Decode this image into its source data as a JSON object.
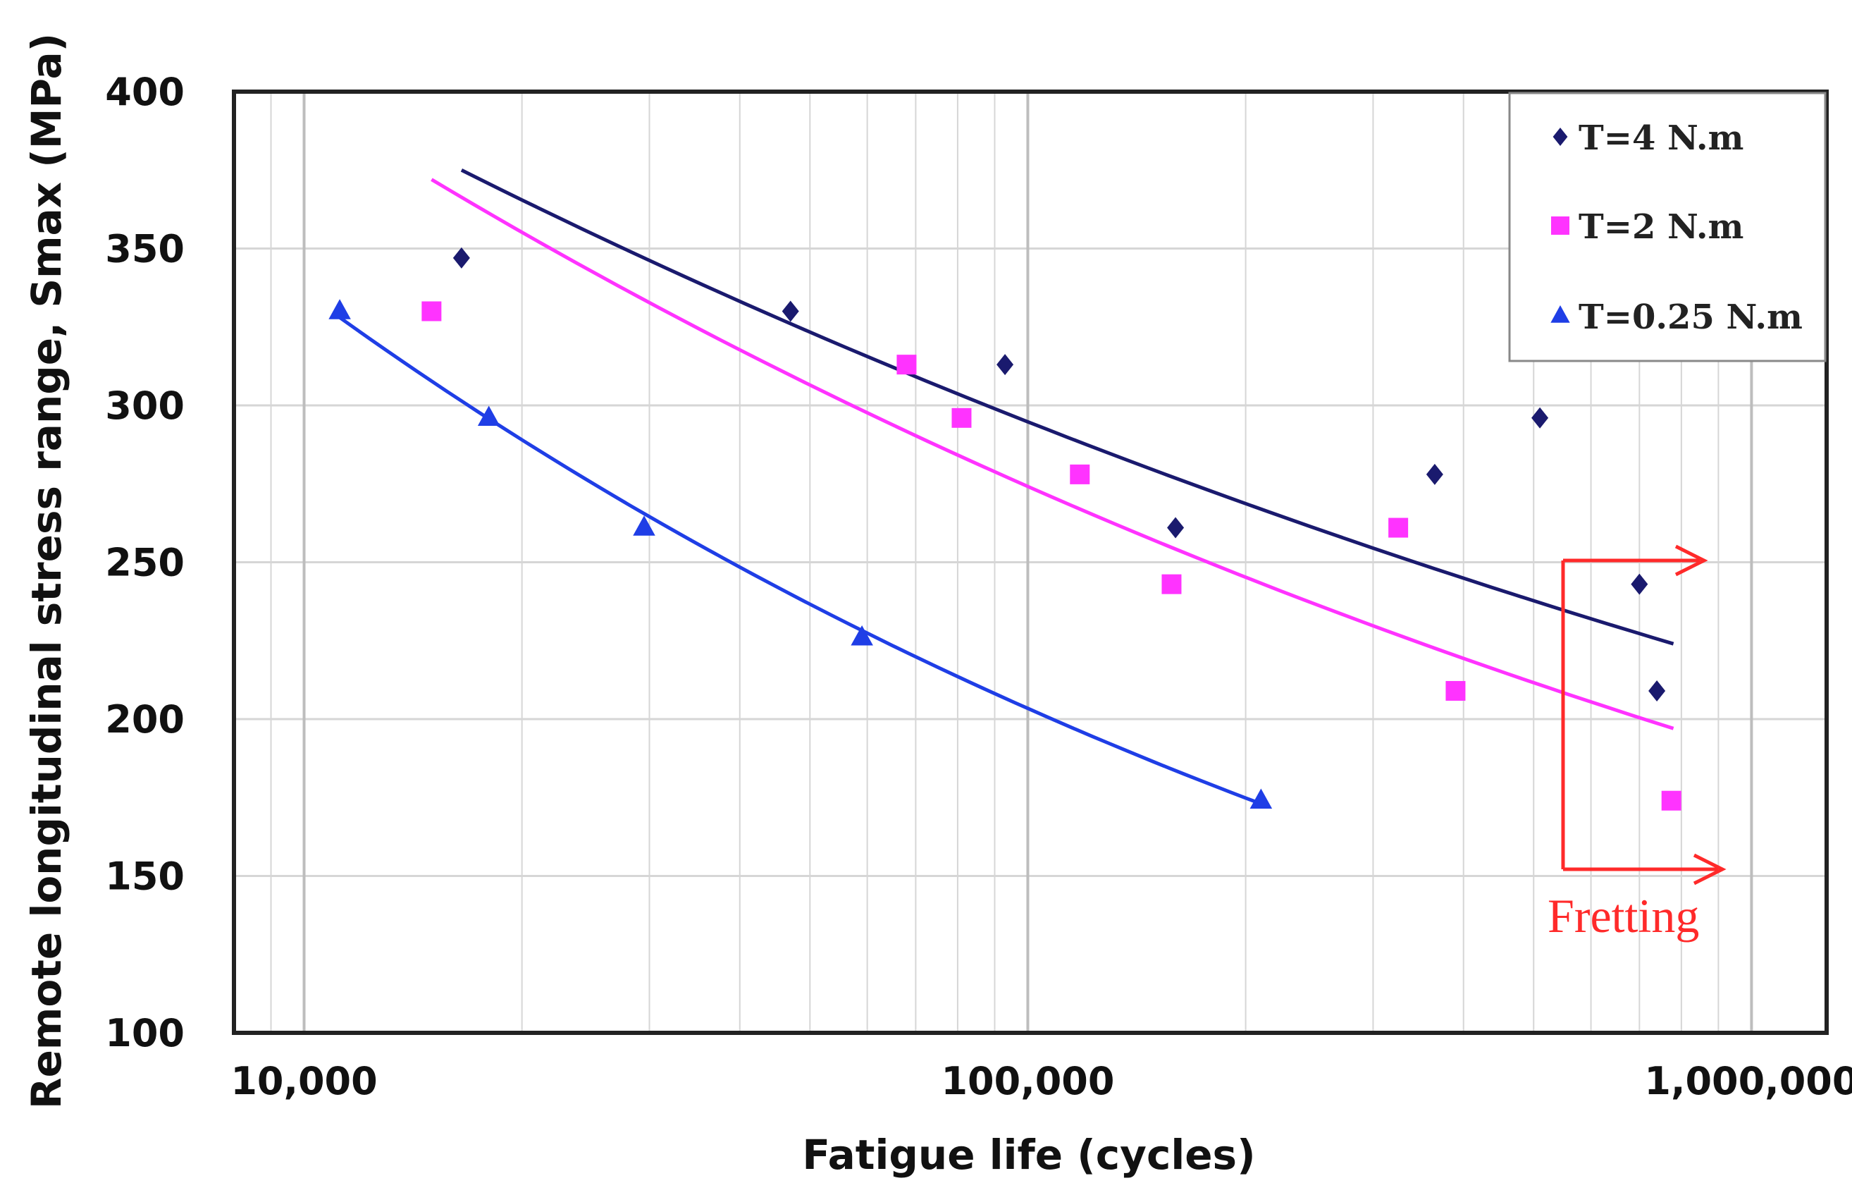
{
  "chart_data": {
    "type": "scatter",
    "title": "",
    "xlabel": "Fatigue life (cycles)",
    "ylabel": "Remote longitudinal stress range, Smax (MPa)",
    "xscale": "log",
    "xlim": [
      8000,
      1270000
    ],
    "ylim": [
      100,
      400
    ],
    "x_ticks": [
      {
        "value": 10000,
        "label": "10,000"
      },
      {
        "value": 100000,
        "label": "100,000"
      },
      {
        "value": 1000000,
        "label": "1,000,000"
      }
    ],
    "y_ticks": [
      {
        "value": 100,
        "label": "100"
      },
      {
        "value": 150,
        "label": "150"
      },
      {
        "value": 200,
        "label": "200"
      },
      {
        "value": 250,
        "label": "250"
      },
      {
        "value": 300,
        "label": "300"
      },
      {
        "value": 350,
        "label": "350"
      },
      {
        "value": 400,
        "label": "400"
      }
    ],
    "grid": true,
    "legend_position": "top-right",
    "series": [
      {
        "name": "T=4 N.m",
        "color": "#1a1a6e",
        "marker": "diamond",
        "points": [
          [
            16500,
            347
          ],
          [
            47000,
            330
          ],
          [
            93000,
            313
          ],
          [
            160000,
            261
          ],
          [
            365000,
            278
          ],
          [
            510000,
            296
          ],
          [
            700000,
            243
          ],
          [
            740000,
            209
          ]
        ],
        "trend": [
          [
            16500,
            375
          ],
          [
            780000,
            224
          ]
        ]
      },
      {
        "name": "T=2 N.m",
        "color": "#ff33ff",
        "marker": "square",
        "points": [
          [
            15000,
            330
          ],
          [
            68000,
            313
          ],
          [
            81000,
            296
          ],
          [
            118000,
            278
          ],
          [
            158000,
            243
          ],
          [
            325000,
            261
          ],
          [
            390000,
            209
          ],
          [
            775000,
            174
          ]
        ],
        "trend": [
          [
            15000,
            372
          ],
          [
            780000,
            197
          ]
        ]
      },
      {
        "name": "T=0.25 N.m",
        "color": "#1f3ee6",
        "marker": "triangle",
        "points": [
          [
            11200,
            330
          ],
          [
            18000,
            296
          ],
          [
            29500,
            261
          ],
          [
            59000,
            226
          ],
          [
            210000,
            174
          ]
        ],
        "trend": [
          [
            11200,
            328
          ],
          [
            210000,
            173
          ]
        ]
      }
    ],
    "annotations": [
      {
        "text": "Fretting",
        "color": "#ff2a2a",
        "x": 800000,
        "y": 138
      }
    ]
  },
  "colors": {
    "axis": "#222222",
    "grid": "#d6d6d6",
    "fretting": "#ff2a2a"
  }
}
